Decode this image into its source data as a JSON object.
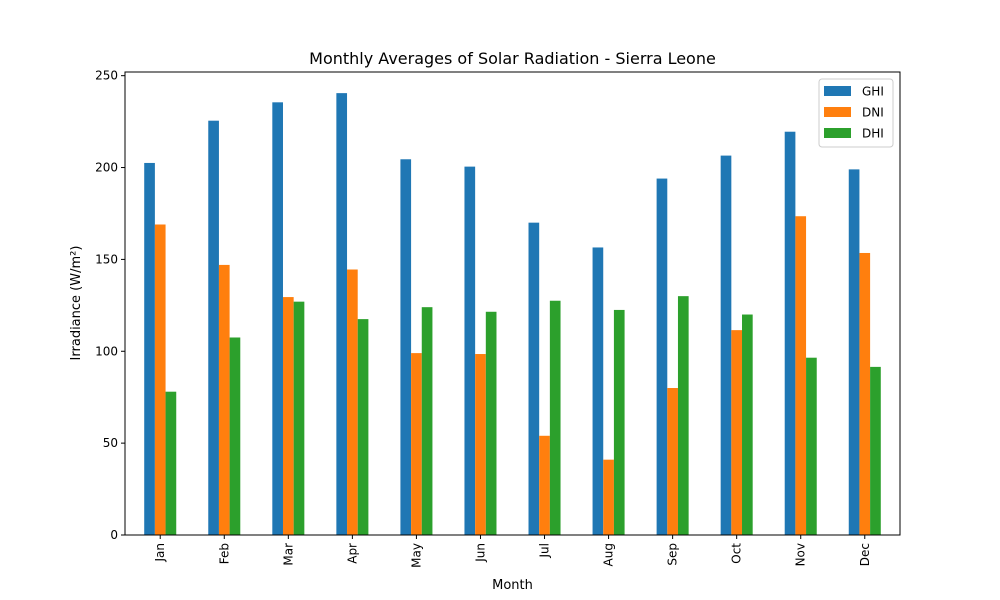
{
  "chart_data": {
    "type": "bar",
    "title": "Monthly Averages of Solar Radiation - Sierra Leone",
    "xlabel": "Month",
    "ylabel": "Irradiance (W/m²)",
    "categories": [
      "Jan",
      "Feb",
      "Mar",
      "Apr",
      "May",
      "Jun",
      "Jul",
      "Aug",
      "Sep",
      "Oct",
      "Nov",
      "Dec"
    ],
    "ylim": [
      0,
      252
    ],
    "yticks": [
      0,
      50,
      100,
      150,
      200,
      250
    ],
    "grid": false,
    "legend_position": "top-right",
    "series": [
      {
        "name": "GHI",
        "color": "#1f77b4",
        "values": [
          202.5,
          225.5,
          235.5,
          240.5,
          204.5,
          200.5,
          170,
          156.5,
          194,
          206.5,
          219.5,
          199
        ]
      },
      {
        "name": "DNI",
        "color": "#ff7f0e",
        "values": [
          169,
          147,
          129.5,
          144.5,
          99,
          98.5,
          54,
          41,
          80,
          111.5,
          173.5,
          153.5
        ]
      },
      {
        "name": "DHI",
        "color": "#2ca02c",
        "values": [
          78,
          107.5,
          127,
          117.5,
          124,
          121.5,
          127.5,
          122.5,
          130,
          120,
          96.5,
          91.5
        ]
      }
    ]
  }
}
